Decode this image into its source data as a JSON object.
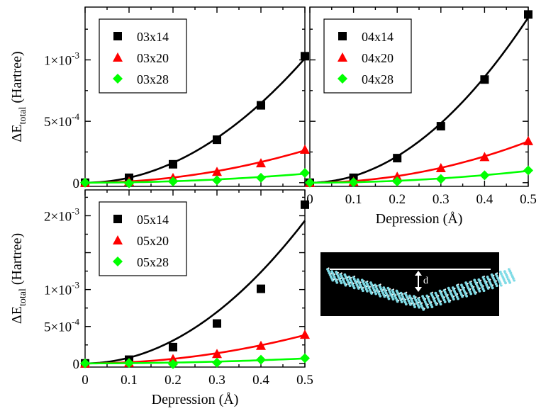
{
  "figure": {
    "inset_label": "d"
  },
  "chart_data": [
    {
      "type": "scatter",
      "panel": "top-left",
      "title": "",
      "xlabel": "",
      "ylabel": "ΔE_total (Hartree)",
      "ylabel_parts": {
        "delta": "ΔE",
        "subscript": "total",
        "unit": "(Hartree)"
      },
      "xlim": [
        0,
        0.5
      ],
      "ylim": [
        -3e-05,
        0.00143
      ],
      "x_ticks": [
        0,
        0.1,
        0.2,
        0.3,
        0.4,
        0.5
      ],
      "x_tick_labels": [],
      "y_ticks": [
        0,
        0.0005,
        0.001
      ],
      "y_tick_labels": [
        {
          "text": "0"
        },
        {
          "mantissa": "5×10",
          "exponent": "-4"
        },
        {
          "mantissa": "1×10",
          "exponent": "-3"
        }
      ],
      "legend_position": "top-left",
      "grid": false,
      "fit": "quadratic",
      "x": [
        0,
        0.1,
        0.2,
        0.3,
        0.4,
        0.5
      ],
      "series": [
        {
          "name": "03x14",
          "marker": "square",
          "color": "#000000",
          "values": [
            0,
            4e-05,
            0.00015,
            0.00035,
            0.00063,
            0.00103
          ]
        },
        {
          "name": "03x20",
          "marker": "triangle",
          "color": "#ff0000",
          "values": [
            0,
            1e-05,
            4e-05,
            9e-05,
            0.00016,
            0.00027
          ]
        },
        {
          "name": "03x28",
          "marker": "diamond",
          "color": "#00ff00",
          "values": [
            0,
            -5e-06,
            1e-05,
            2e-05,
            4e-05,
            8e-05
          ]
        }
      ]
    },
    {
      "type": "scatter",
      "panel": "top-right",
      "title": "",
      "xlabel": "Depression (Å)",
      "ylabel": "",
      "xlim": [
        0,
        0.5
      ],
      "ylim": [
        -3e-05,
        0.00143
      ],
      "x_ticks": [
        0,
        0.1,
        0.2,
        0.3,
        0.4,
        0.5
      ],
      "x_tick_labels": [
        "0",
        "0.1",
        "0.2",
        "0.3",
        "0.4",
        "0.5"
      ],
      "y_ticks": [
        0,
        0.0005,
        0.001
      ],
      "y_tick_labels": [],
      "legend_position": "top-left",
      "grid": false,
      "fit": "quadratic",
      "x": [
        0,
        0.1,
        0.2,
        0.3,
        0.4,
        0.5
      ],
      "series": [
        {
          "name": "04x14",
          "marker": "square",
          "color": "#000000",
          "values": [
            0,
            4e-05,
            0.0002,
            0.00046,
            0.00084,
            0.00137
          ]
        },
        {
          "name": "04x20",
          "marker": "triangle",
          "color": "#ff0000",
          "values": [
            0,
            1e-05,
            5e-05,
            0.00012,
            0.00021,
            0.00034
          ]
        },
        {
          "name": "04x28",
          "marker": "diamond",
          "color": "#00ff00",
          "values": [
            0,
            3e-06,
            1e-05,
            3e-05,
            6e-05,
            0.0001
          ]
        }
      ]
    },
    {
      "type": "scatter",
      "panel": "bottom-left",
      "title": "",
      "xlabel": "Depression (Å)",
      "ylabel": "ΔE_total (Hartree)",
      "ylabel_parts": {
        "delta": "ΔE",
        "subscript": "total",
        "unit": "(Hartree)"
      },
      "xlim": [
        0,
        0.5
      ],
      "ylim": [
        -5e-05,
        0.00235
      ],
      "x_ticks": [
        0,
        0.1,
        0.2,
        0.3,
        0.4,
        0.5
      ],
      "x_tick_labels": [
        "0",
        "0.1",
        "0.2",
        "0.3",
        "0.4",
        "0.5"
      ],
      "y_ticks": [
        0,
        0.0005,
        0.001,
        0.0015,
        0.002
      ],
      "y_tick_labels": [
        {
          "text": "0"
        },
        {
          "mantissa": "5×10",
          "exponent": "-4"
        },
        {
          "mantissa": "1×10",
          "exponent": "-3"
        },
        {
          "text": ""
        },
        {
          "mantissa": "2×10",
          "exponent": "-3"
        }
      ],
      "legend_position": "top-left",
      "grid": false,
      "fit": "quadratic",
      "x": [
        0,
        0.1,
        0.2,
        0.3,
        0.4,
        0.5
      ],
      "series": [
        {
          "name": "05x14",
          "marker": "square",
          "color": "#000000",
          "values": [
            0,
            5e-05,
            0.00022,
            0.00054,
            0.00101,
            0.00215
          ]
        },
        {
          "name": "05x20",
          "marker": "triangle",
          "color": "#ff0000",
          "values": [
            0,
            1e-05,
            6e-05,
            0.00013,
            0.00024,
            0.00039
          ]
        },
        {
          "name": "05x28",
          "marker": "diamond",
          "color": "#00ff00",
          "values": [
            0,
            5e-06,
            -1e-05,
            1e-05,
            5e-05,
            7e-05
          ]
        }
      ]
    }
  ]
}
